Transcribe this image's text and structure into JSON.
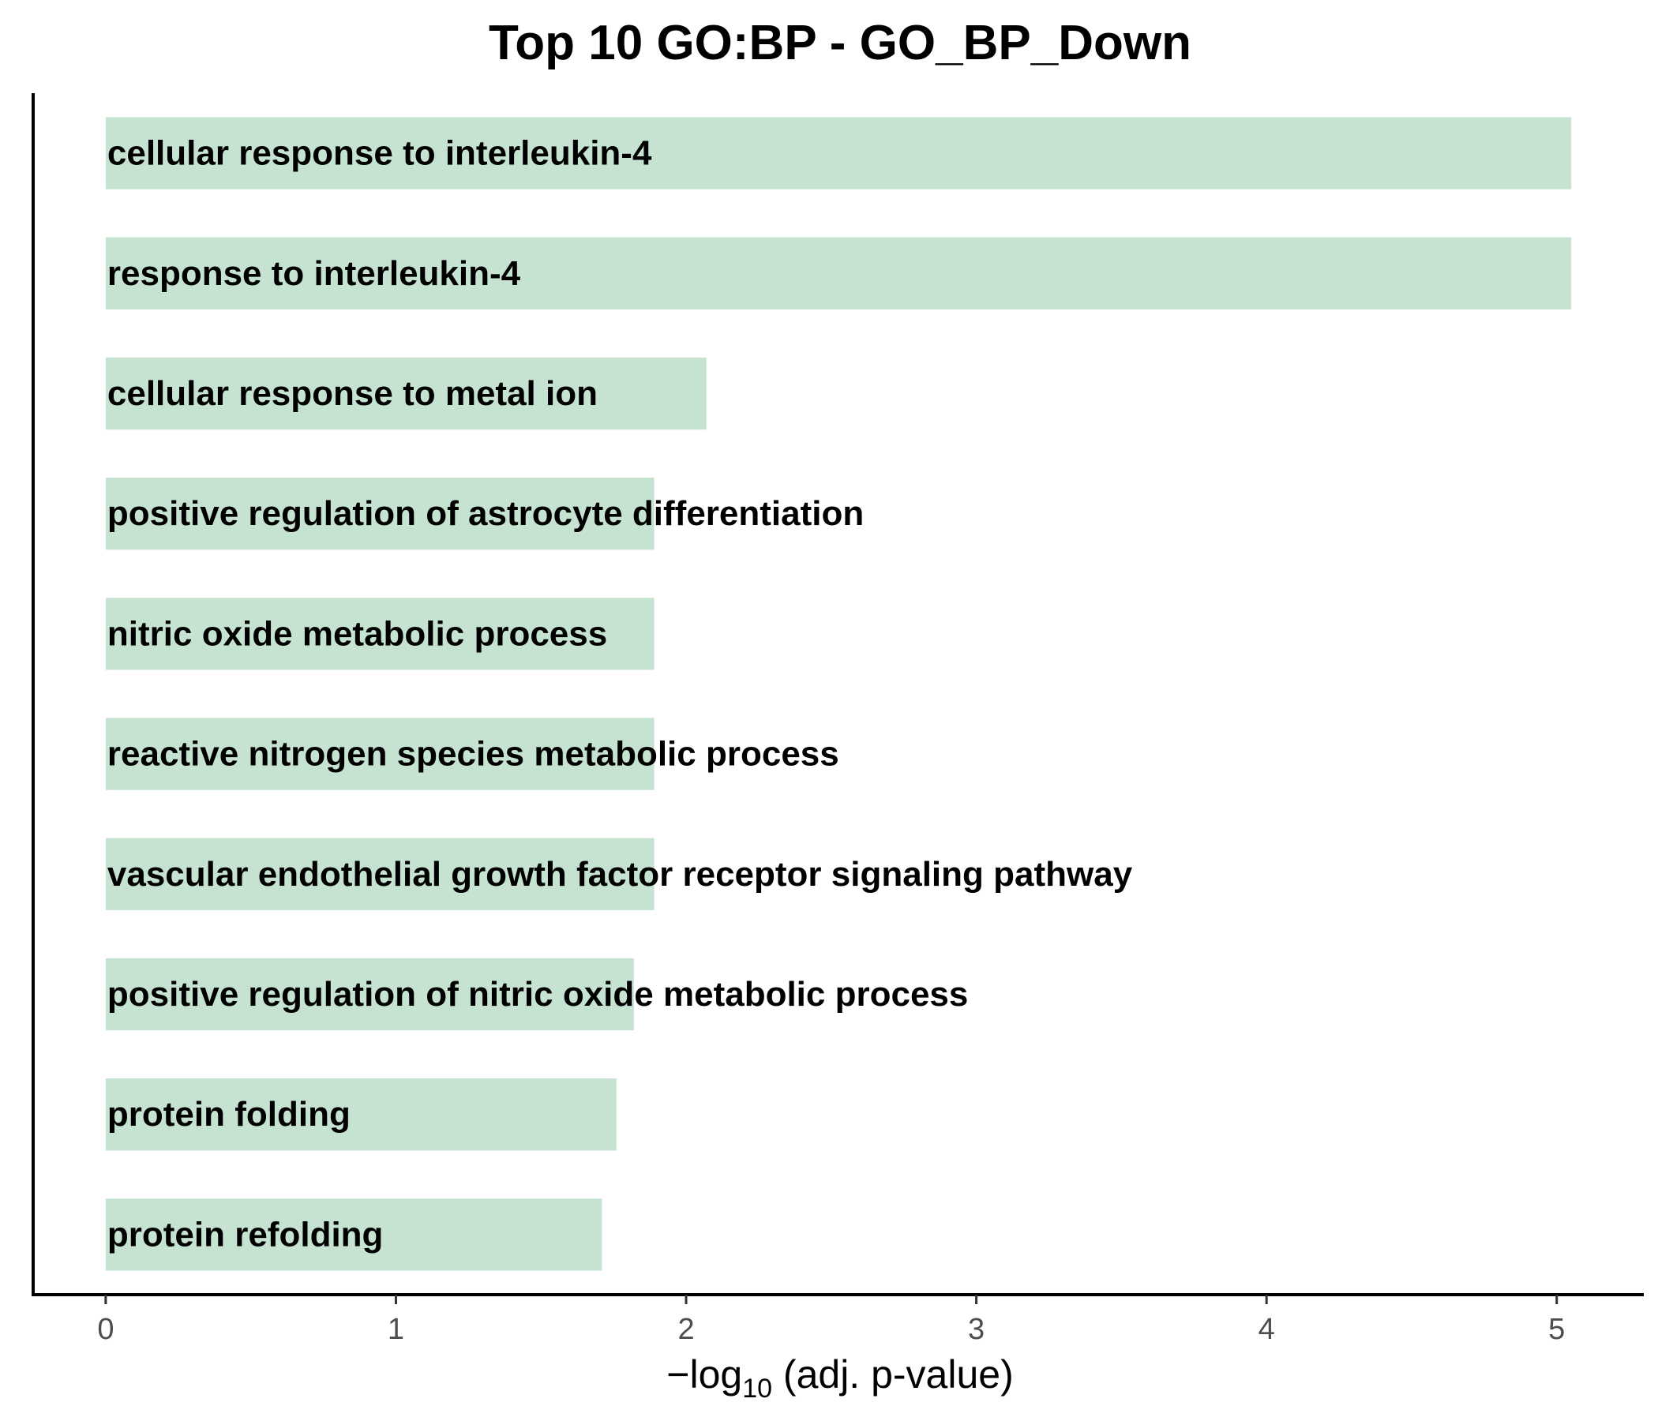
{
  "chart_data": {
    "type": "bar",
    "orientation": "horizontal",
    "title": "Top 10 GO:BP - GO_BP_Down",
    "xlabel": {
      "prefix": "−log",
      "subscript": "10",
      "suffix": " (adj. p-value)"
    },
    "ylabel": "",
    "xlim": [
      -0.25,
      5.3
    ],
    "xticks": [
      0,
      1,
      2,
      3,
      4,
      5
    ],
    "grid": false,
    "legend": "none",
    "bar_color": "#c6e3d1",
    "categories": [
      "cellular response to interleukin-4",
      "response to interleukin-4",
      "cellular response to metal ion",
      "positive regulation of astrocyte differentiation",
      "nitric oxide metabolic process",
      "reactive nitrogen species metabolic process",
      "vascular endothelial growth factor receptor signaling pathway",
      "positive regulation of nitric oxide metabolic process",
      "protein folding",
      "protein refolding"
    ],
    "values": [
      5.05,
      5.05,
      2.07,
      1.89,
      1.89,
      1.89,
      1.89,
      1.82,
      1.76,
      1.71
    ]
  }
}
